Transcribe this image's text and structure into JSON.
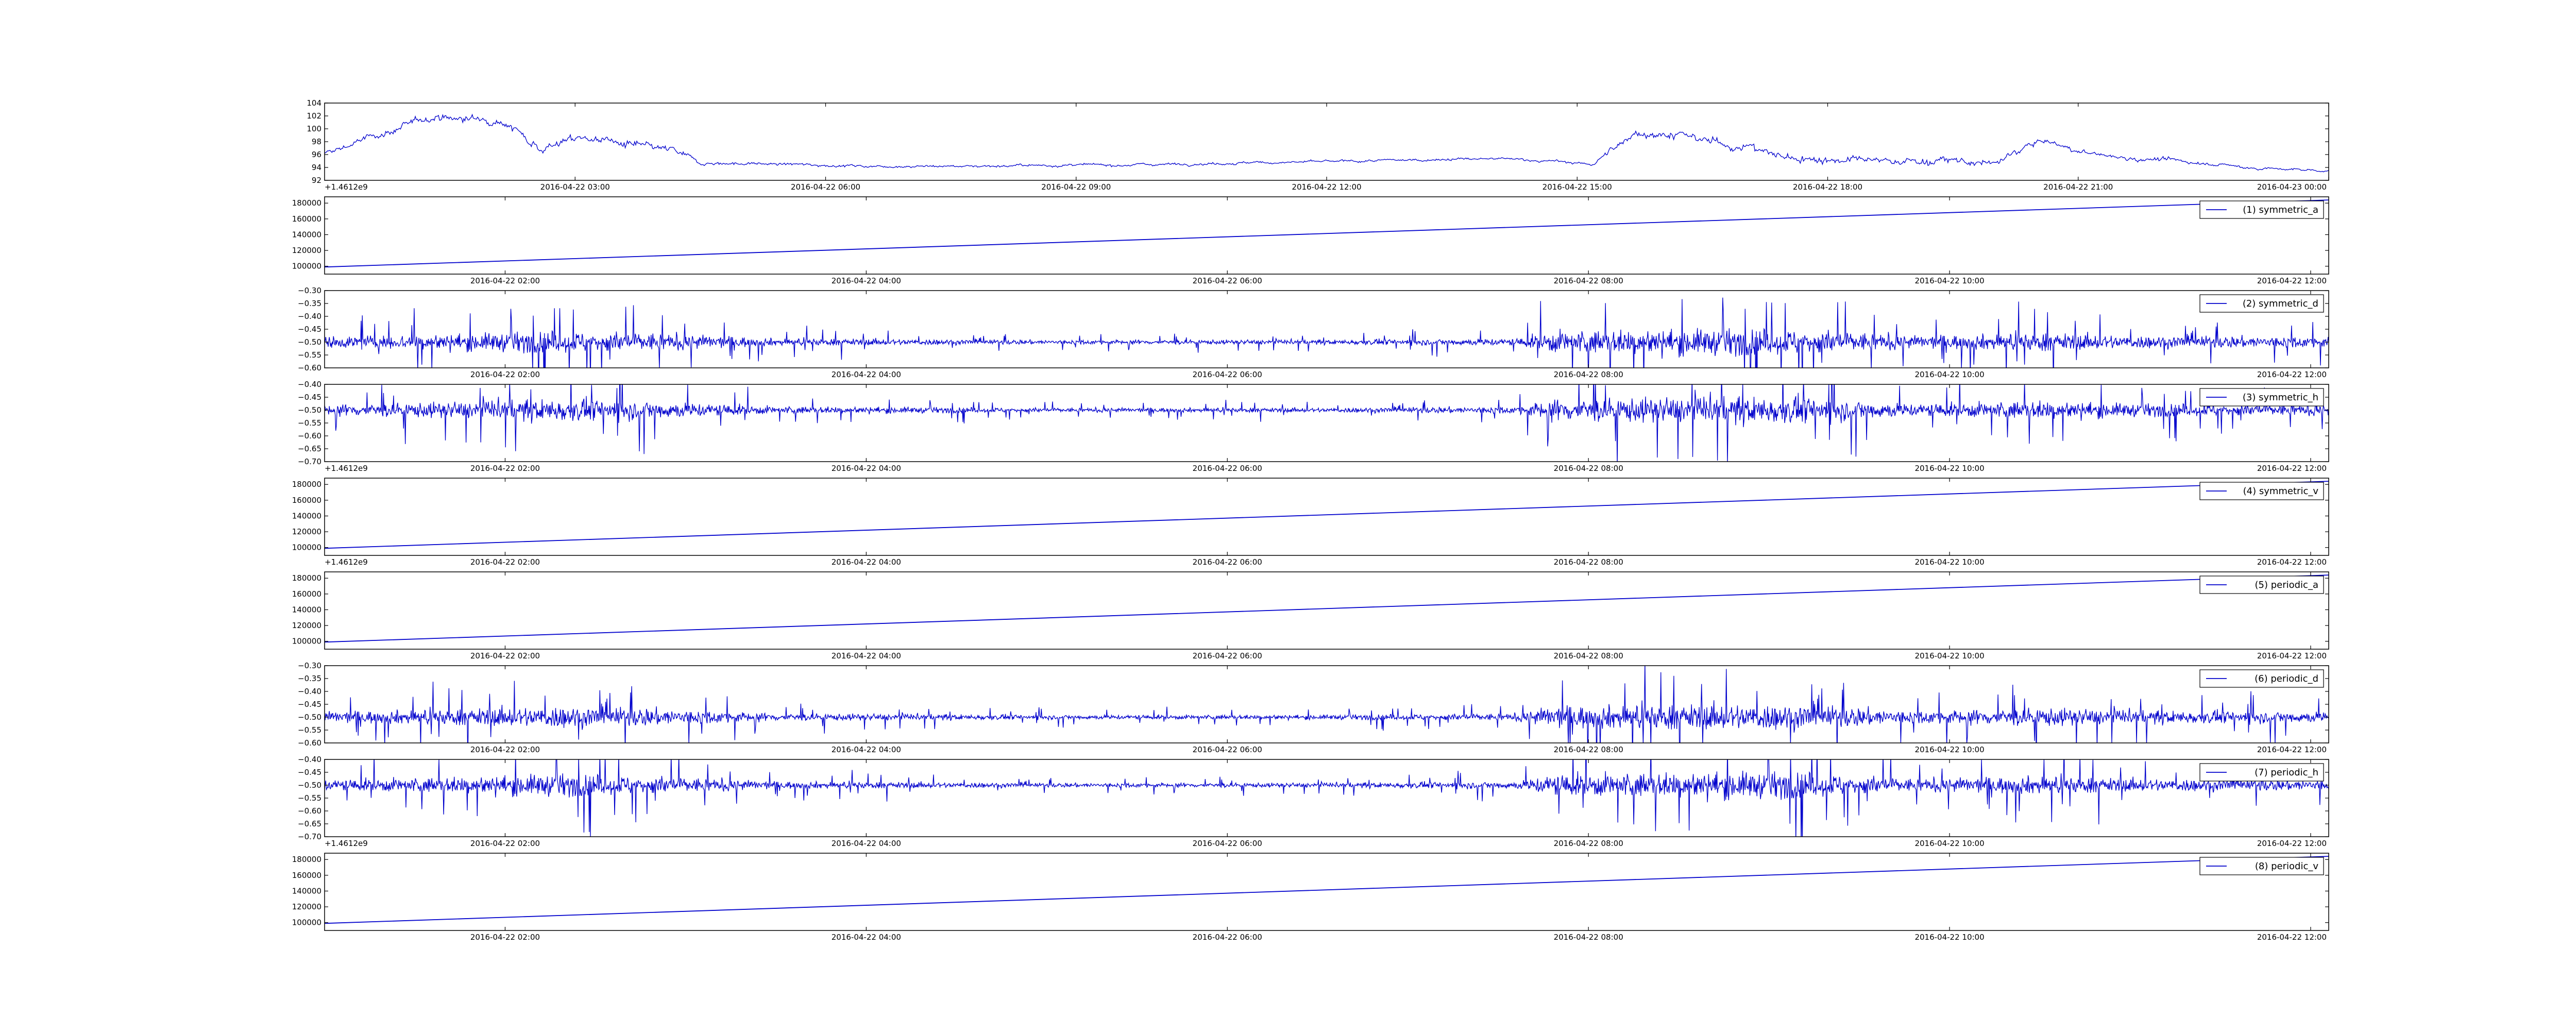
{
  "chart_data": [
    {
      "type": "line",
      "title": "",
      "xlabel": "",
      "ylabel": "",
      "xlim": [
        0,
        24
      ],
      "ylim": [
        92,
        104
      ],
      "yticks": [
        92,
        94,
        96,
        98,
        100,
        102,
        104
      ],
      "xticks": [
        {
          "value": 3,
          "label": "2016-04-22 03:00"
        },
        {
          "value": 6,
          "label": "2016-04-22 06:00"
        },
        {
          "value": 9,
          "label": "2016-04-22 09:00"
        },
        {
          "value": 12,
          "label": "2016-04-22 12:00"
        },
        {
          "value": 15,
          "label": "2016-04-22 15:00"
        },
        {
          "value": 18,
          "label": "2016-04-22 18:00"
        },
        {
          "value": 21,
          "label": "2016-04-22 21:00"
        },
        {
          "value": 24,
          "label": "2016-04-23 00:00"
        }
      ],
      "offset_label": "+1.4612e9",
      "line_color": "#0000cc",
      "style": "noisy",
      "series": [
        {
          "x": [
            0,
            0.5,
            1,
            1.3,
            1.6,
            2.1,
            2.6,
            3.0,
            3.3,
            3.6,
            4.2,
            4.5,
            5.5,
            6.5,
            7.5,
            8.5,
            9.5,
            10.5,
            11.5,
            12.5,
            13.5,
            14.3,
            15.2,
            15.4,
            15.7,
            16.2,
            16.6,
            17.1,
            17.5,
            18.5,
            19.5,
            20.0,
            20.4,
            20.6,
            21.0,
            21.5,
            22.0,
            22.5,
            23.0,
            23.5,
            24
          ],
          "y": [
            96,
            98.5,
            100.5,
            102,
            101.5,
            101.5,
            97,
            98.5,
            98.5,
            97.5,
            96.5,
            94.7,
            94.5,
            94.2,
            94.2,
            94.3,
            94.4,
            94.6,
            94.8,
            95.0,
            95.3,
            95.3,
            94.5,
            96.5,
            99.5,
            99,
            98,
            97,
            95.5,
            95,
            95,
            94.5,
            97.5,
            98,
            96.5,
            95.5,
            95.2,
            94.7,
            94,
            93.7,
            93.5
          ],
          "noise_amp": [
            0.8,
            0.8,
            0.9,
            0.9,
            0.9,
            0.9,
            1.1,
            1.1,
            1.1,
            1.0,
            0.9,
            0.4,
            0.35,
            0.3,
            0.3,
            0.3,
            0.3,
            0.3,
            0.3,
            0.3,
            0.3,
            0.3,
            0.4,
            0.8,
            1.0,
            1.0,
            1.0,
            1.1,
            1.0,
            0.9,
            0.9,
            0.7,
            0.9,
            0.8,
            0.6,
            0.5,
            0.5,
            0.4,
            0.4,
            0.3,
            0.3
          ]
        }
      ]
    },
    {
      "type": "line",
      "title": "",
      "xlim": [
        1,
        12.1
      ],
      "ylim": [
        90000,
        188000
      ],
      "yticks": [
        100000,
        120000,
        140000,
        160000,
        180000
      ],
      "xticks": [
        {
          "value": 2,
          "label": "2016-04-22 02:00"
        },
        {
          "value": 4,
          "label": "2016-04-22 04:00"
        },
        {
          "value": 6,
          "label": "2016-04-22 06:00"
        },
        {
          "value": 8,
          "label": "2016-04-22 08:00"
        },
        {
          "value": 10,
          "label": "2016-04-22 10:00"
        },
        {
          "value": 12,
          "label": "2016-04-22 12:00"
        }
      ],
      "offset_label": "",
      "line_color": "#0000cc",
      "style": "linear",
      "legend": "top-right",
      "series": [
        {
          "name": "(1) symmetric_a",
          "x": [
            1,
            12.1
          ],
          "y": [
            99000,
            184000
          ]
        }
      ]
    },
    {
      "type": "line",
      "title": "",
      "xlim": [
        1,
        12.1
      ],
      "ylim": [
        -0.6,
        -0.3
      ],
      "yticks": [
        -0.6,
        -0.55,
        -0.5,
        -0.45,
        -0.4,
        -0.35,
        -0.3
      ],
      "xticks": [
        {
          "value": 2,
          "label": "2016-04-22 02:00"
        },
        {
          "value": 4,
          "label": "2016-04-22 04:00"
        },
        {
          "value": 6,
          "label": "2016-04-22 06:00"
        },
        {
          "value": 8,
          "label": "2016-04-22 08:00"
        },
        {
          "value": 10,
          "label": "2016-04-22 10:00"
        },
        {
          "value": 12,
          "label": "2016-04-22 12:00"
        }
      ],
      "offset_label": "",
      "line_color": "#0000cc",
      "style": "noisy-spikes",
      "legend": "top-right",
      "series": [
        {
          "name": "(2) symmetric_d",
          "x": [
            1,
            1.8,
            2.3,
            2.8,
            3.5,
            5.0,
            6.5,
            7.6,
            7.8,
            8.2,
            8.8,
            9.2,
            9.8,
            10.1,
            10.5,
            11.0,
            12.1
          ],
          "y": [
            -0.5,
            -0.5,
            -0.5,
            -0.5,
            -0.5,
            -0.5,
            -0.5,
            -0.5,
            -0.5,
            -0.5,
            -0.5,
            -0.5,
            -0.5,
            -0.5,
            -0.5,
            -0.5,
            -0.5
          ],
          "noise_amp": [
            0.03,
            0.045,
            0.06,
            0.05,
            0.02,
            0.012,
            0.012,
            0.02,
            0.06,
            0.065,
            0.07,
            0.07,
            0.035,
            0.04,
            0.05,
            0.035,
            0.03
          ]
        }
      ]
    },
    {
      "type": "line",
      "title": "",
      "xlim": [
        1,
        12.1
      ],
      "ylim": [
        -0.7,
        -0.4
      ],
      "yticks": [
        -0.7,
        -0.65,
        -0.6,
        -0.55,
        -0.5,
        -0.45,
        -0.4
      ],
      "xticks": [
        {
          "value": 2,
          "label": "2016-04-22 02:00"
        },
        {
          "value": 4,
          "label": "2016-04-22 04:00"
        },
        {
          "value": 6,
          "label": "2016-04-22 06:00"
        },
        {
          "value": 8,
          "label": "2016-04-22 08:00"
        },
        {
          "value": 10,
          "label": "2016-04-22 10:00"
        },
        {
          "value": 12,
          "label": "2016-04-22 12:00"
        }
      ],
      "offset_label": "+1.4612e9",
      "line_color": "#0000cc",
      "style": "noisy-spikes",
      "legend": "top-right",
      "series": [
        {
          "name": "(3) symmetric_h",
          "x": [
            1,
            1.8,
            2.3,
            2.8,
            3.5,
            5.0,
            6.5,
            7.6,
            7.8,
            8.2,
            8.8,
            9.2,
            9.8,
            10.1,
            10.5,
            11.0,
            12.1
          ],
          "y": [
            -0.5,
            -0.5,
            -0.5,
            -0.5,
            -0.5,
            -0.5,
            -0.5,
            -0.5,
            -0.5,
            -0.5,
            -0.5,
            -0.5,
            -0.5,
            -0.5,
            -0.5,
            -0.5,
            -0.5
          ],
          "noise_amp": [
            0.03,
            0.045,
            0.06,
            0.05,
            0.02,
            0.012,
            0.012,
            0.02,
            0.06,
            0.065,
            0.07,
            0.07,
            0.035,
            0.04,
            0.05,
            0.035,
            0.03
          ]
        }
      ]
    },
    {
      "type": "line",
      "title": "",
      "xlim": [
        1,
        12.1
      ],
      "ylim": [
        90000,
        188000
      ],
      "yticks": [
        100000,
        120000,
        140000,
        160000,
        180000
      ],
      "xticks": [
        {
          "value": 2,
          "label": "2016-04-22 02:00"
        },
        {
          "value": 4,
          "label": "2016-04-22 04:00"
        },
        {
          "value": 6,
          "label": "2016-04-22 06:00"
        },
        {
          "value": 8,
          "label": "2016-04-22 08:00"
        },
        {
          "value": 10,
          "label": "2016-04-22 10:00"
        },
        {
          "value": 12,
          "label": "2016-04-22 12:00"
        }
      ],
      "offset_label": "+1.4612e9",
      "line_color": "#0000cc",
      "style": "linear",
      "legend": "top-right",
      "series": [
        {
          "name": "(4) symmetric_v",
          "x": [
            1,
            12.1
          ],
          "y": [
            99000,
            184000
          ]
        }
      ]
    },
    {
      "type": "line",
      "title": "",
      "xlim": [
        1,
        12.1
      ],
      "ylim": [
        90000,
        188000
      ],
      "yticks": [
        100000,
        120000,
        140000,
        160000,
        180000
      ],
      "xticks": [
        {
          "value": 2,
          "label": "2016-04-22 02:00"
        },
        {
          "value": 4,
          "label": "2016-04-22 04:00"
        },
        {
          "value": 6,
          "label": "2016-04-22 06:00"
        },
        {
          "value": 8,
          "label": "2016-04-22 08:00"
        },
        {
          "value": 10,
          "label": "2016-04-22 10:00"
        },
        {
          "value": 12,
          "label": "2016-04-22 12:00"
        }
      ],
      "offset_label": "",
      "line_color": "#0000cc",
      "style": "linear",
      "legend": "top-right",
      "series": [
        {
          "name": "(5) periodic_a",
          "x": [
            1,
            12.1
          ],
          "y": [
            99000,
            184000
          ]
        }
      ]
    },
    {
      "type": "line",
      "title": "",
      "xlim": [
        1,
        12.1
      ],
      "ylim": [
        -0.6,
        -0.3
      ],
      "yticks": [
        -0.6,
        -0.55,
        -0.5,
        -0.45,
        -0.4,
        -0.35,
        -0.3
      ],
      "xticks": [
        {
          "value": 2,
          "label": "2016-04-22 02:00"
        },
        {
          "value": 4,
          "label": "2016-04-22 04:00"
        },
        {
          "value": 6,
          "label": "2016-04-22 06:00"
        },
        {
          "value": 8,
          "label": "2016-04-22 08:00"
        },
        {
          "value": 10,
          "label": "2016-04-22 10:00"
        },
        {
          "value": 12,
          "label": "2016-04-22 12:00"
        }
      ],
      "offset_label": "",
      "line_color": "#0000cc",
      "style": "noisy-spikes",
      "legend": "top-right",
      "series": [
        {
          "name": "(6) periodic_d",
          "x": [
            1,
            1.8,
            2.3,
            2.8,
            3.5,
            5.0,
            6.5,
            7.6,
            7.8,
            8.2,
            8.8,
            9.2,
            9.8,
            10.1,
            10.5,
            11.0,
            12.1
          ],
          "y": [
            -0.5,
            -0.5,
            -0.5,
            -0.5,
            -0.5,
            -0.5,
            -0.5,
            -0.5,
            -0.5,
            -0.5,
            -0.5,
            -0.5,
            -0.5,
            -0.5,
            -0.5,
            -0.5,
            -0.5
          ],
          "noise_amp": [
            0.03,
            0.045,
            0.06,
            0.05,
            0.02,
            0.012,
            0.012,
            0.02,
            0.06,
            0.065,
            0.07,
            0.07,
            0.035,
            0.04,
            0.05,
            0.035,
            0.03
          ]
        }
      ]
    },
    {
      "type": "line",
      "title": "",
      "xlim": [
        1,
        12.1
      ],
      "ylim": [
        -0.7,
        -0.4
      ],
      "yticks": [
        -0.7,
        -0.65,
        -0.6,
        -0.55,
        -0.5,
        -0.45,
        -0.4
      ],
      "xticks": [
        {
          "value": 2,
          "label": "2016-04-22 02:00"
        },
        {
          "value": 4,
          "label": "2016-04-22 04:00"
        },
        {
          "value": 6,
          "label": "2016-04-22 06:00"
        },
        {
          "value": 8,
          "label": "2016-04-22 08:00"
        },
        {
          "value": 10,
          "label": "2016-04-22 10:00"
        },
        {
          "value": 12,
          "label": "2016-04-22 12:00"
        }
      ],
      "offset_label": "+1.4612e9",
      "line_color": "#0000cc",
      "style": "noisy-spikes",
      "legend": "top-right",
      "series": [
        {
          "name": "(7) periodic_h",
          "x": [
            1,
            1.8,
            2.3,
            2.8,
            3.5,
            5.0,
            6.5,
            7.6,
            7.8,
            8.2,
            8.8,
            9.2,
            9.8,
            10.1,
            10.5,
            11.0,
            12.1
          ],
          "y": [
            -0.5,
            -0.5,
            -0.5,
            -0.5,
            -0.5,
            -0.5,
            -0.5,
            -0.5,
            -0.5,
            -0.5,
            -0.5,
            -0.5,
            -0.5,
            -0.5,
            -0.5,
            -0.5,
            -0.5
          ],
          "noise_amp": [
            0.03,
            0.045,
            0.06,
            0.05,
            0.02,
            0.012,
            0.012,
            0.02,
            0.06,
            0.065,
            0.07,
            0.07,
            0.035,
            0.04,
            0.05,
            0.035,
            0.03
          ]
        }
      ]
    },
    {
      "type": "line",
      "title": "",
      "xlim": [
        1,
        12.1
      ],
      "ylim": [
        90000,
        188000
      ],
      "yticks": [
        100000,
        120000,
        140000,
        160000,
        180000
      ],
      "xticks": [
        {
          "value": 2,
          "label": "2016-04-22 02:00"
        },
        {
          "value": 4,
          "label": "2016-04-22 04:00"
        },
        {
          "value": 6,
          "label": "2016-04-22 06:00"
        },
        {
          "value": 8,
          "label": "2016-04-22 08:00"
        },
        {
          "value": 10,
          "label": "2016-04-22 10:00"
        },
        {
          "value": 12,
          "label": "2016-04-22 12:00"
        }
      ],
      "offset_label": "",
      "line_color": "#0000cc",
      "style": "linear",
      "legend": "top-right",
      "series": [
        {
          "name": "(8) periodic_v",
          "x": [
            1,
            12.1
          ],
          "y": [
            99000,
            184000
          ]
        }
      ]
    }
  ]
}
